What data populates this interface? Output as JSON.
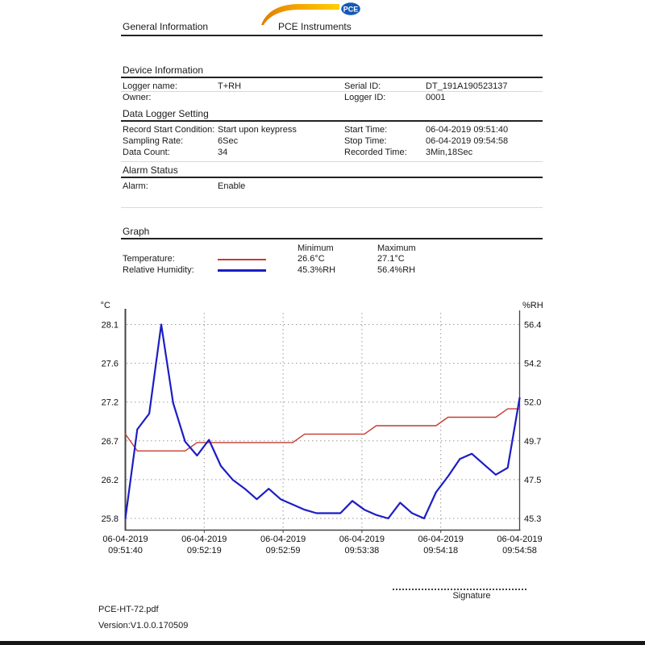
{
  "header": {
    "left_title": "General Information",
    "brand": "PCE Instruments",
    "logo_badge_text": "PCE",
    "logo_orange": "#f5a400",
    "logo_blue": "#1659b5"
  },
  "device_information": {
    "heading": "Device Information",
    "rows": [
      {
        "label1": "Logger name:",
        "value1": "T+RH",
        "label2": "Serial ID:",
        "value2": "DT_191A190523137"
      },
      {
        "label1": "Owner:",
        "value1": "",
        "label2": "Logger ID:",
        "value2": "0001"
      }
    ]
  },
  "data_logger_setting": {
    "heading": "Data Logger Setting",
    "rows": [
      {
        "label1": "Record Start Condition:",
        "value1": "Start upon keypress",
        "label2": "Start Time:",
        "value2": "06-04-2019 09:51:40"
      },
      {
        "label1": "Sampling Rate:",
        "value1": "6Sec",
        "label2": "Stop Time:",
        "value2": "06-04-2019 09:54:58"
      },
      {
        "label1": "Data Count:",
        "value1": "34",
        "label2": "Recorded Time:",
        "value2": "3Min,18Sec"
      }
    ]
  },
  "alarm_status": {
    "heading": "Alarm Status",
    "label": "Alarm:",
    "value": "Enable"
  },
  "graph_section": {
    "heading": "Graph",
    "min_header": "Minimum",
    "max_header": "Maximum",
    "legend": [
      {
        "label": "Temperature:",
        "color": "#c43c35",
        "min": "26.6°C",
        "max": "27.1°C"
      },
      {
        "label": "Relative Humidity:",
        "color": "#1d1dc4",
        "min": "45.3%RH",
        "max": "56.4%RH"
      }
    ]
  },
  "chart_data": {
    "type": "line",
    "grid": true,
    "left_axis": {
      "label": "°C",
      "min": 25.8,
      "max": 28.1,
      "ticks": [
        "28.1",
        "27.6",
        "27.2",
        "26.7",
        "26.2",
        "25.8"
      ]
    },
    "right_axis": {
      "label": "%RH",
      "min": 45.3,
      "max": 56.4,
      "ticks": [
        "56.4",
        "54.2",
        "52.0",
        "49.7",
        "47.5",
        "45.3"
      ]
    },
    "x_ticks": [
      [
        "06-04-2019",
        "09:51:40"
      ],
      [
        "06-04-2019",
        "09:52:19"
      ],
      [
        "06-04-2019",
        "09:52:59"
      ],
      [
        "06-04-2019",
        "09:53:38"
      ],
      [
        "06-04-2019",
        "09:54:18"
      ],
      [
        "06-04-2019",
        "09:54:58"
      ]
    ],
    "series": [
      {
        "name": "Temperature",
        "axis": "left",
        "color": "#c43c35",
        "width": 1.4,
        "values": [
          26.8,
          26.6,
          26.6,
          26.6,
          26.6,
          26.6,
          26.7,
          26.7,
          26.7,
          26.7,
          26.7,
          26.7,
          26.7,
          26.7,
          26.7,
          26.8,
          26.8,
          26.8,
          26.8,
          26.8,
          26.8,
          26.9,
          26.9,
          26.9,
          26.9,
          26.9,
          26.9,
          27.0,
          27.0,
          27.0,
          27.0,
          27.0,
          27.1,
          27.1
        ]
      },
      {
        "name": "Relative Humidity",
        "axis": "right",
        "color": "#1d1dc4",
        "width": 2.2,
        "values": [
          45.3,
          50.4,
          51.3,
          56.4,
          51.9,
          49.7,
          48.9,
          49.8,
          48.3,
          47.5,
          47.0,
          46.4,
          47.0,
          46.4,
          46.1,
          45.8,
          45.6,
          45.6,
          45.6,
          46.3,
          45.8,
          45.5,
          45.3,
          46.2,
          45.6,
          45.3,
          46.8,
          47.7,
          48.7,
          49.0,
          48.4,
          47.8,
          48.2,
          52.2
        ]
      }
    ]
  },
  "footer": {
    "signature_label": "Signature",
    "filename": "PCE-HT-72.pdf",
    "version": "Version:V1.0.0.170509"
  }
}
